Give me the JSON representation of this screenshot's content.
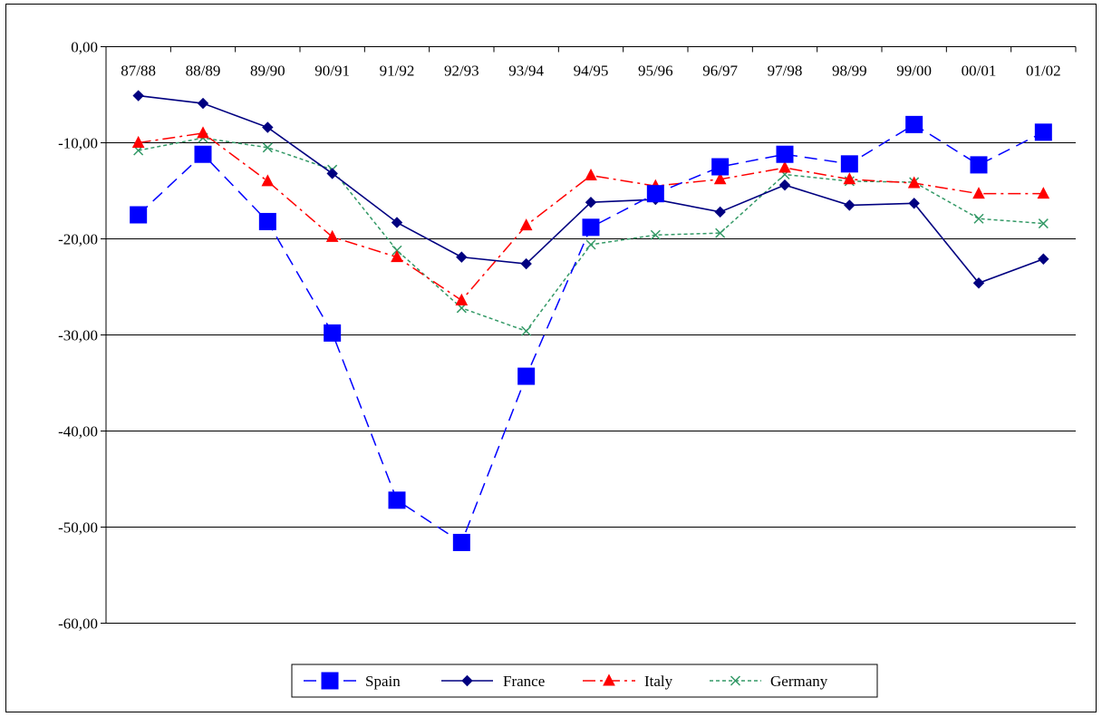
{
  "chart_data": {
    "type": "line",
    "title": "",
    "xlabel": "",
    "ylabel": "",
    "ylim": [
      -60,
      0
    ],
    "y_ticks": [
      0,
      -10,
      -20,
      -30,
      -40,
      -50,
      -60
    ],
    "y_tick_labels": [
      "0,00",
      "-10,00",
      "-20,00",
      "-30,00",
      "-40,00",
      "-50,00",
      "-60,00"
    ],
    "x_axis_position": "top",
    "grid": "horizontal",
    "legend_position": "bottom",
    "categories": [
      "87/88",
      "88/89",
      "89/90",
      "90/91",
      "91/92",
      "92/93",
      "93/94",
      "94/95",
      "95/96",
      "96/97",
      "97/98",
      "98/99",
      "99/00",
      "00/01",
      "01/02"
    ],
    "series": [
      {
        "name": "Spain",
        "color": "#0000ff",
        "line_style": "dashed",
        "marker": "square",
        "values": [
          -17.5,
          -11.2,
          -18.2,
          -29.8,
          -47.2,
          -51.6,
          -34.3,
          -18.8,
          -15.3,
          -12.5,
          -11.2,
          -12.2,
          -8.1,
          -12.3,
          -8.9
        ]
      },
      {
        "name": "France",
        "color": "#000080",
        "line_style": "solid",
        "marker": "diamond",
        "values": [
          -5.1,
          -5.9,
          -8.4,
          -13.2,
          -18.3,
          -21.9,
          -22.6,
          -16.2,
          -15.9,
          -17.2,
          -14.4,
          -16.5,
          -16.3,
          -24.6,
          -22.1
        ]
      },
      {
        "name": "Italy",
        "color": "#ff0000",
        "line_style": "dashdot",
        "marker": "triangle",
        "values": [
          -10.0,
          -9.0,
          -14.0,
          -19.8,
          -21.9,
          -26.4,
          -18.6,
          -13.4,
          -14.5,
          -13.8,
          -12.6,
          -13.8,
          -14.2,
          -15.3,
          -15.3
        ]
      },
      {
        "name": "Germany",
        "color": "#339966",
        "line_style": "dotted",
        "marker": "x",
        "values": [
          -10.8,
          -9.5,
          -10.5,
          -12.8,
          -21.2,
          -27.2,
          -29.6,
          -20.6,
          -19.6,
          -19.4,
          -13.3,
          -14.0,
          -14.1,
          -17.9,
          -18.4
        ]
      }
    ]
  }
}
